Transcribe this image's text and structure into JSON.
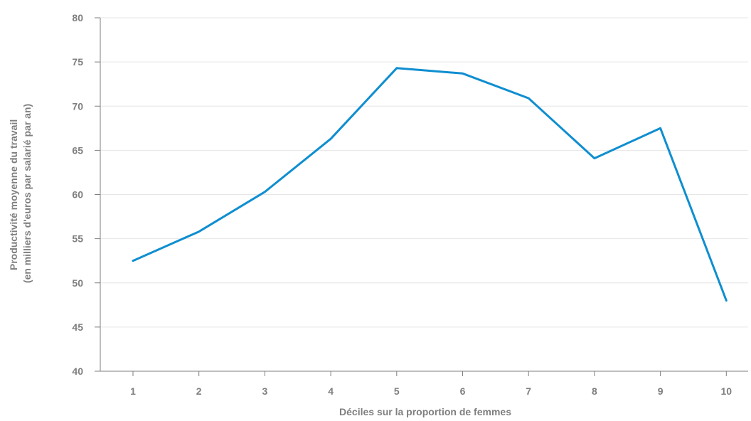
{
  "chart_data": {
    "type": "line",
    "title": "",
    "xlabel": "Déciles sur la proportion de femmes",
    "ylabel_lines": [
      "Productivité moyenne du travail",
      "(en milliers d'euros par salarié par an)"
    ],
    "categories": [
      "1",
      "2",
      "3",
      "4",
      "5",
      "6",
      "7",
      "8",
      "9",
      "10"
    ],
    "series": [
      {
        "values": [
          52.5,
          55.8,
          60.3,
          66.3,
          74.3,
          73.7,
          70.9,
          64.1,
          67.5,
          48.0
        ],
        "color": "#0f8ed0"
      }
    ],
    "ylim": [
      40,
      80
    ],
    "yticks": [
      40,
      45,
      50,
      55,
      60,
      65,
      70,
      75,
      80
    ],
    "grid": true,
    "legend": "none"
  }
}
